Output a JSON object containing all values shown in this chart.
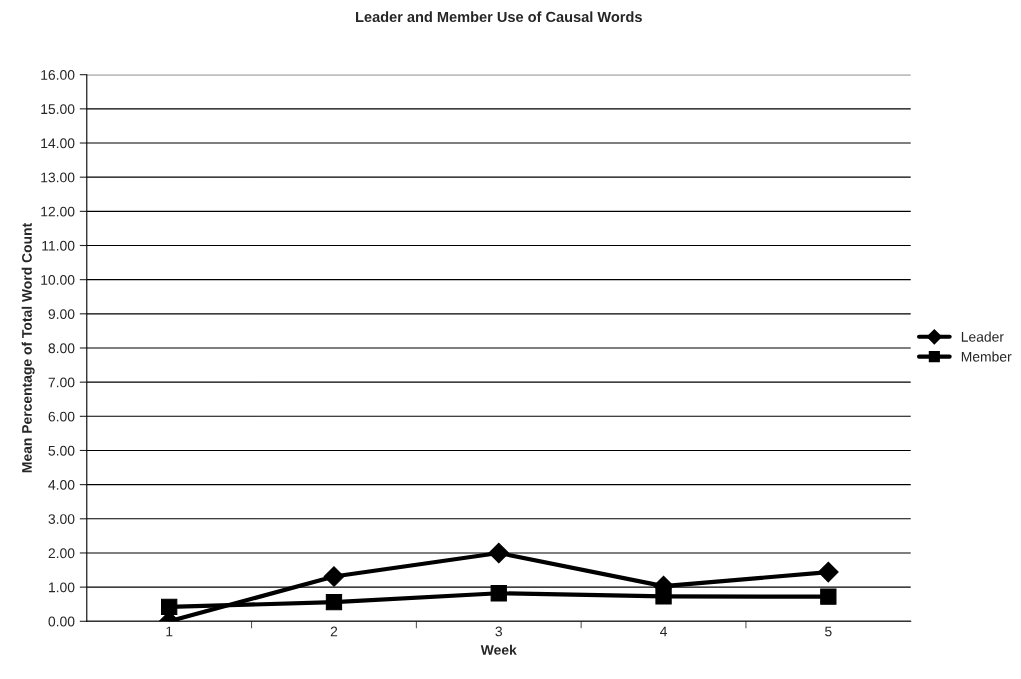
{
  "chart_data": {
    "type": "line",
    "title": "Leader and Member Use of Causal Words",
    "xlabel": "Week",
    "ylabel": "Mean Percentage of Total Word Count",
    "categories": [
      "1",
      "2",
      "3",
      "4",
      "5"
    ],
    "series": [
      {
        "name": "Leader",
        "color": "#000000",
        "marker": "diamond",
        "values": [
          0.0,
          1.31,
          2.0,
          1.03,
          1.44
        ]
      },
      {
        "name": "Member",
        "color": "#000000",
        "marker": "square",
        "values": [
          0.42,
          0.56,
          0.82,
          0.73,
          0.72
        ]
      }
    ],
    "ylim": [
      0,
      16
    ],
    "yticks": [
      {
        "value": 0,
        "label": "0.00"
      },
      {
        "value": 1,
        "label": "1.00"
      },
      {
        "value": 2,
        "label": "2.00"
      },
      {
        "value": 3,
        "label": "3.00"
      },
      {
        "value": 4,
        "label": "4.00"
      },
      {
        "value": 5,
        "label": "5.00"
      },
      {
        "value": 6,
        "label": "6.00"
      },
      {
        "value": 7,
        "label": "7.00"
      },
      {
        "value": 8,
        "label": "8.00"
      },
      {
        "value": 9,
        "label": "9.00"
      },
      {
        "value": 10,
        "label": "10.00"
      },
      {
        "value": 11,
        "label": "11.00"
      },
      {
        "value": 12,
        "label": "12.00"
      },
      {
        "value": 13,
        "label": "13.00"
      },
      {
        "value": 14,
        "label": "14.00"
      },
      {
        "value": 15,
        "label": "15.00"
      },
      {
        "value": 16,
        "label": "16.00"
      }
    ],
    "grid": "y",
    "legend": "right",
    "line_style": "solid"
  }
}
